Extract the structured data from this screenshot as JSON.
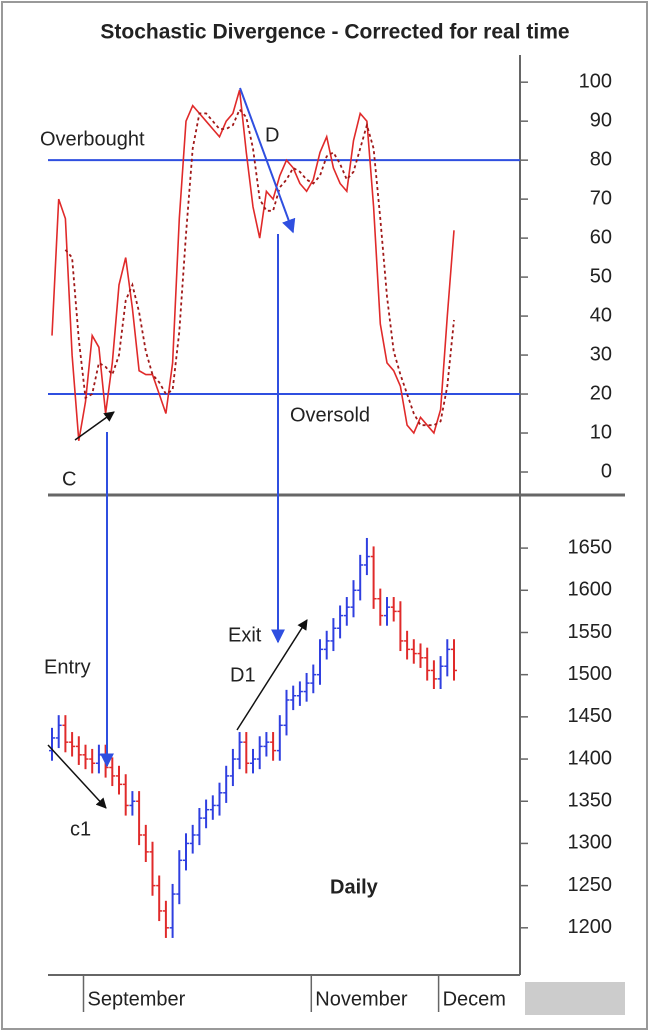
{
  "chart_data": [
    {
      "type": "line",
      "title": "Stochastic Divergence - Corrected for real time",
      "ylim": [
        -5,
        108
      ],
      "yticks": [
        0,
        10,
        20,
        30,
        40,
        50,
        60,
        70,
        80,
        90,
        100
      ],
      "levels": [
        {
          "value": 80,
          "label": "Overbought"
        },
        {
          "value": 20,
          "label": "Oversold"
        }
      ],
      "level_color": "#2f4fe0",
      "annotations": [
        "D",
        "C"
      ],
      "series": [
        {
          "color": "#e02a2a",
          "dash": false,
          "values": [
            35,
            70,
            65,
            30,
            8,
            18,
            35,
            32,
            15,
            28,
            48,
            55,
            42,
            26,
            25,
            25,
            20,
            15,
            28,
            65,
            90,
            94,
            92,
            90,
            88,
            86,
            90,
            92,
            98,
            82,
            68,
            60,
            72,
            70,
            76,
            80,
            78,
            74,
            72,
            75,
            82,
            86,
            78,
            74,
            72,
            85,
            92,
            90,
            68,
            38,
            28,
            26,
            22,
            12,
            10,
            14,
            12,
            10,
            16,
            40,
            62
          ]
        },
        {
          "color": "#a01818",
          "dash": true,
          "values": [
            null,
            null,
            57,
            55,
            34,
            19,
            20,
            28,
            27,
            25,
            30,
            44,
            48,
            41,
            31,
            25,
            23,
            20,
            21,
            36,
            61,
            83,
            92,
            92,
            90,
            88,
            88,
            89,
            93,
            91,
            83,
            70,
            67,
            67,
            73,
            75,
            78,
            77,
            75,
            74,
            76,
            81,
            82,
            79,
            75,
            77,
            83,
            89,
            83,
            65,
            45,
            31,
            25,
            20,
            15,
            12,
            12,
            12,
            13,
            22,
            39
          ]
        }
      ]
    },
    {
      "type": "ohlc",
      "ylim": [
        1150,
        1707
      ],
      "yticks": [
        1200,
        1250,
        1300,
        1350,
        1400,
        1450,
        1500,
        1550,
        1600,
        1650
      ],
      "categories": [
        null,
        null,
        null,
        null,
        null,
        "September",
        null,
        null,
        null,
        null,
        null,
        null,
        null,
        null,
        null,
        null,
        null,
        null,
        null,
        null,
        null,
        null,
        null,
        null,
        null,
        null,
        null,
        null,
        null,
        null,
        null,
        null,
        null,
        null,
        null,
        null,
        null,
        null,
        null,
        "November",
        null,
        null,
        null,
        null,
        null,
        null,
        null,
        null,
        null,
        null,
        null,
        null,
        null,
        null,
        null,
        null,
        null,
        null,
        "Decem",
        null,
        null
      ],
      "up_color": "#2f3fe0",
      "down_color": "#e02a2a",
      "annotations": [
        "Entry",
        "Exit",
        "D1",
        "c1",
        "Daily"
      ],
      "open": [
        1410,
        1425,
        1440,
        1420,
        1415,
        1405,
        1400,
        1395,
        1405,
        1390,
        1380,
        1370,
        1345,
        1350,
        1310,
        1290,
        1250,
        1220,
        1200,
        1240,
        1280,
        1300,
        1310,
        1330,
        1340,
        1345,
        1360,
        1380,
        1400,
        1420,
        1395,
        1400,
        1415,
        1420,
        1410,
        1440,
        1470,
        1475,
        1480,
        1490,
        1500,
        1530,
        1540,
        1555,
        1570,
        1580,
        1600,
        1630,
        1640,
        1590,
        1570,
        1580,
        1575,
        1540,
        1530,
        1525,
        1520,
        1505,
        1495,
        1510,
        1530
      ],
      "high": [
        1437,
        1452,
        1452,
        1432,
        1427,
        1417,
        1412,
        1417,
        1417,
        1402,
        1392,
        1382,
        1362,
        1362,
        1322,
        1302,
        1262,
        1232,
        1252,
        1292,
        1312,
        1322,
        1342,
        1352,
        1357,
        1372,
        1392,
        1412,
        1432,
        1432,
        1412,
        1427,
        1432,
        1432,
        1452,
        1482,
        1487,
        1492,
        1502,
        1512,
        1542,
        1552,
        1567,
        1582,
        1592,
        1612,
        1642,
        1662,
        1652,
        1602,
        1592,
        1592,
        1587,
        1552,
        1542,
        1537,
        1532,
        1517,
        1522,
        1542,
        1542
      ],
      "low": [
        1398,
        1413,
        1408,
        1403,
        1393,
        1388,
        1383,
        1383,
        1378,
        1368,
        1358,
        1333,
        1333,
        1298,
        1278,
        1238,
        1208,
        1188,
        1188,
        1228,
        1268,
        1288,
        1298,
        1318,
        1328,
        1333,
        1348,
        1368,
        1388,
        1383,
        1383,
        1388,
        1403,
        1398,
        1398,
        1428,
        1458,
        1463,
        1468,
        1478,
        1488,
        1518,
        1528,
        1543,
        1558,
        1568,
        1588,
        1618,
        1578,
        1558,
        1558,
        1563,
        1528,
        1518,
        1513,
        1508,
        1493,
        1483,
        1483,
        1498,
        1493
      ],
      "close": [
        1425,
        1440,
        1420,
        1415,
        1405,
        1400,
        1395,
        1405,
        1390,
        1380,
        1370,
        1345,
        1350,
        1310,
        1290,
        1250,
        1220,
        1200,
        1240,
        1280,
        1300,
        1310,
        1330,
        1340,
        1345,
        1360,
        1380,
        1400,
        1420,
        1395,
        1400,
        1415,
        1420,
        1410,
        1440,
        1470,
        1475,
        1480,
        1490,
        1500,
        1530,
        1540,
        1555,
        1570,
        1580,
        1600,
        1630,
        1640,
        1590,
        1570,
        1580,
        1575,
        1540,
        1530,
        1525,
        1520,
        1505,
        1495,
        1510,
        1530,
        1505
      ]
    }
  ]
}
